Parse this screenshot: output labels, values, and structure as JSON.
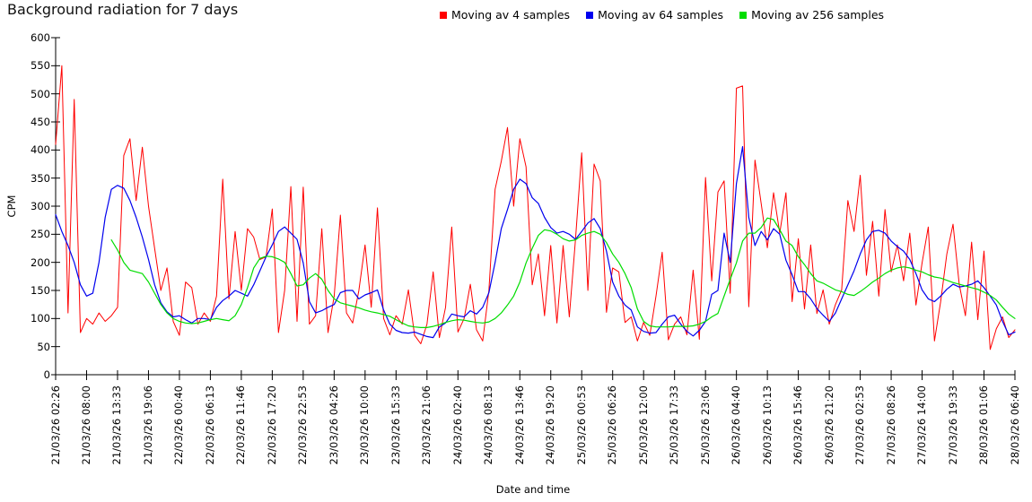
{
  "title": "Background radiation for 7 days",
  "chart_data": {
    "type": "line",
    "title": "Background radiation for 7 days",
    "xlabel": "Date and time",
    "ylabel": "CPM",
    "ylim": [
      0,
      600
    ],
    "ytick_step": 50,
    "grid": false,
    "legend_position": "top-center",
    "x_tick_labels": [
      "21/03/26 02:26",
      "21/03/26 08:00",
      "21/03/26 13:33",
      "21/03/26 19:06",
      "22/03/26 00:40",
      "22/03/26 06:13",
      "22/03/26 11:46",
      "22/03/26 17:20",
      "22/03/26 22:53",
      "23/03/26 04:26",
      "23/03/26 10:00",
      "23/03/26 15:33",
      "23/03/26 21:06",
      "24/03/26 02:40",
      "24/03/26 08:13",
      "24/03/26 13:46",
      "24/03/26 19:20",
      "25/03/26 00:53",
      "25/03/26 06:26",
      "25/03/26 12:00",
      "25/03/26 17:33",
      "25/03/26 23:06",
      "26/03/26 04:40",
      "26/03/26 10:13",
      "26/03/26 15:46",
      "26/03/26 21:20",
      "27/03/26 02:53",
      "27/03/26 08:26",
      "27/03/26 14:00",
      "27/03/26 19:33",
      "28/03/26 01:06",
      "28/03/26 06:40"
    ],
    "x_note": "156 samples per series, evenly spaced from first to last tick (5 samples per tick interval of 5h33m)",
    "series": [
      {
        "name": "Moving av 4 samples",
        "color": "#ff0000",
        "values": [
          410,
          550,
          110,
          490,
          75,
          100,
          90,
          110,
          95,
          105,
          120,
          390,
          420,
          310,
          405,
          300,
          225,
          150,
          190,
          95,
          70,
          165,
          155,
          90,
          110,
          95,
          140,
          348,
          135,
          255,
          150,
          260,
          245,
          205,
          210,
          295,
          75,
          150,
          335,
          95,
          334,
          90,
          105,
          260,
          75,
          140,
          284,
          110,
          92,
          150,
          231,
          120,
          297,
          100,
          71,
          105,
          90,
          151,
          70,
          55,
          90,
          183,
          66,
          120,
          263,
          76,
          100,
          161,
          80,
          60,
          150,
          330,
          380,
          440,
          300,
          420,
          370,
          160,
          215,
          105,
          230,
          92,
          230,
          103,
          241,
          395,
          150,
          375,
          345,
          111,
          190,
          183,
          93,
          103,
          60,
          93,
          70,
          140,
          218,
          62,
          90,
          103,
          71,
          186,
          63,
          351,
          167,
          325,
          345,
          145,
          510,
          514,
          121,
          382,
          305,
          226,
          324,
          252,
          324,
          130,
          242,
          117,
          231,
          109,
          151,
          90,
          125,
          151,
          310,
          255,
          355,
          177,
          273,
          140,
          294,
          183,
          231,
          167,
          252,
          124,
          199,
          263,
          60,
          130,
          215,
          268,
          161,
          105,
          236,
          98,
          220,
          45,
          82,
          103,
          66,
          80
        ]
      },
      {
        "name": "Moving av 64 samples",
        "color": "#0000ee",
        "values": [
          285,
          255,
          230,
          200,
          160,
          140,
          145,
          200,
          280,
          330,
          337,
          332,
          310,
          280,
          245,
          205,
          160,
          128,
          112,
          103,
          105,
          98,
          92,
          100,
          100,
          98,
          120,
          132,
          140,
          150,
          145,
          140,
          160,
          185,
          210,
          231,
          255,
          263,
          252,
          241,
          199,
          130,
          110,
          114,
          120,
          125,
          146,
          150,
          150,
          135,
          142,
          146,
          151,
          115,
          90,
          79,
          75,
          74,
          76,
          72,
          68,
          66,
          85,
          92,
          108,
          105,
          103,
          114,
          108,
          120,
          146,
          200,
          260,
          294,
          330,
          348,
          340,
          315,
          305,
          280,
          262,
          252,
          255,
          250,
          241,
          255,
          270,
          278,
          260,
          220,
          165,
          140,
          124,
          115,
          85,
          77,
          74,
          75,
          90,
          103,
          106,
          90,
          77,
          69,
          79,
          95,
          143,
          150,
          252,
          200,
          340,
          406,
          280,
          230,
          255,
          240,
          260,
          250,
          204,
          178,
          148,
          148,
          135,
          118,
          106,
          95,
          110,
          135,
          160,
          185,
          215,
          240,
          255,
          257,
          252,
          238,
          228,
          220,
          205,
          180,
          151,
          135,
          130,
          140,
          152,
          161,
          156,
          158,
          161,
          167,
          155,
          140,
          124,
          95,
          71,
          76
        ]
      },
      {
        "name": "Moving av 256 samples",
        "color": "#00dd00",
        "values": [
          null,
          null,
          null,
          null,
          null,
          null,
          null,
          null,
          null,
          240,
          222,
          200,
          186,
          183,
          180,
          165,
          145,
          125,
          110,
          100,
          95,
          92,
          91,
          92,
          95,
          98,
          100,
          98,
          96,
          105,
          125,
          155,
          190,
          207,
          211,
          210,
          206,
          200,
          180,
          158,
          160,
          172,
          180,
          170,
          150,
          135,
          128,
          125,
          122,
          119,
          115,
          112,
          110,
          107,
          104,
          98,
          92,
          87,
          85,
          84,
          84,
          86,
          89,
          93,
          96,
          98,
          97,
          95,
          93,
          92,
          94,
          100,
          110,
          124,
          140,
          165,
          199,
          225,
          248,
          258,
          256,
          250,
          242,
          238,
          240,
          248,
          252,
          255,
          250,
          235,
          215,
          200,
          180,
          155,
          117,
          95,
          87,
          85,
          85,
          85,
          86,
          86,
          86,
          87,
          90,
          95,
          103,
          109,
          140,
          170,
          199,
          238,
          252,
          252,
          262,
          279,
          276,
          258,
          238,
          230,
          210,
          196,
          180,
          167,
          163,
          157,
          151,
          148,
          143,
          141,
          148,
          156,
          165,
          172,
          180,
          186,
          190,
          192,
          190,
          186,
          183,
          178,
          174,
          172,
          168,
          164,
          161,
          158,
          155,
          152,
          147,
          141,
          133,
          120,
          108,
          100
        ]
      }
    ]
  }
}
